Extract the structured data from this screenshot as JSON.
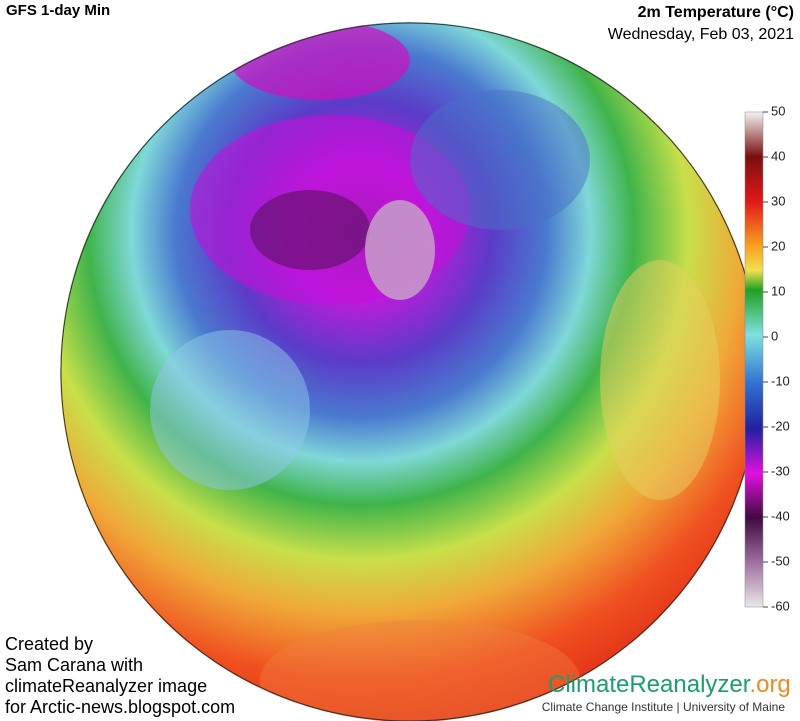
{
  "header": {
    "title": "GFS 1-day Min",
    "variable": "2m Temperature (°C)",
    "date": "Wednesday, Feb 03, 2021"
  },
  "colorbar": {
    "range": [
      -60,
      50
    ],
    "ticks": [
      50,
      40,
      30,
      20,
      10,
      0,
      -10,
      -20,
      -30,
      -40,
      -50,
      -60
    ]
  },
  "credit": {
    "lines": [
      "Created by",
      "Sam Carana with",
      "climateReanalyzer image",
      "for Arctic-news.blogspot.com"
    ]
  },
  "logo": {
    "name": "ClimateReanalyzer",
    "suffix": ".org",
    "subtitle": "Climate Change Institute | University of Maine"
  }
}
